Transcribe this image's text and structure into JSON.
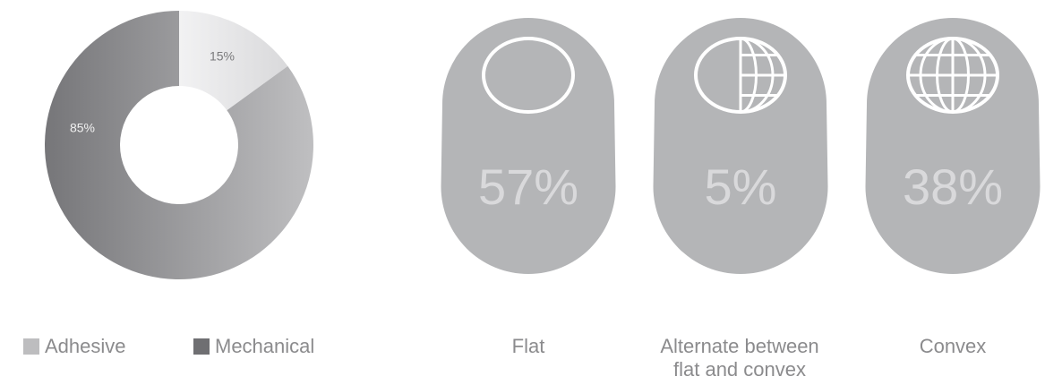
{
  "chart_data": [
    {
      "type": "pie",
      "donut": true,
      "categories": [
        "Adhesive",
        "Mechanical"
      ],
      "values": [
        15,
        85
      ],
      "slice_labels": [
        "15%",
        "85%"
      ],
      "legend": [
        "Adhesive",
        "Mechanical"
      ],
      "legend_placement": "bottom",
      "colors": {
        "Adhesive_light": "#f2f2f3",
        "Adhesive_dark": "#d9d9db",
        "Mechanical_light": "#bfbfc1",
        "Mechanical_dark": "#767679",
        "legend_Adhesive": "#bdbdbf",
        "legend_Mechanical": "#6f6f72"
      }
    },
    {
      "type": "table",
      "categories": [
        "Flat",
        "Alternate between flat and convex",
        "Convex"
      ],
      "values": [
        57,
        5,
        38
      ],
      "value_labels": [
        "57%",
        "5%",
        "38%"
      ],
      "label_lines": [
        [
          "Flat"
        ],
        [
          "Alternate between",
          "flat and convex"
        ],
        [
          "Convex"
        ]
      ],
      "icons": [
        "flat-oval-icon",
        "half-globe-icon",
        "globe-icon"
      ],
      "colors": {
        "badge": "#b4b5b7",
        "icon_stroke": "#ffffff",
        "label": "#8b8b8d"
      }
    }
  ]
}
